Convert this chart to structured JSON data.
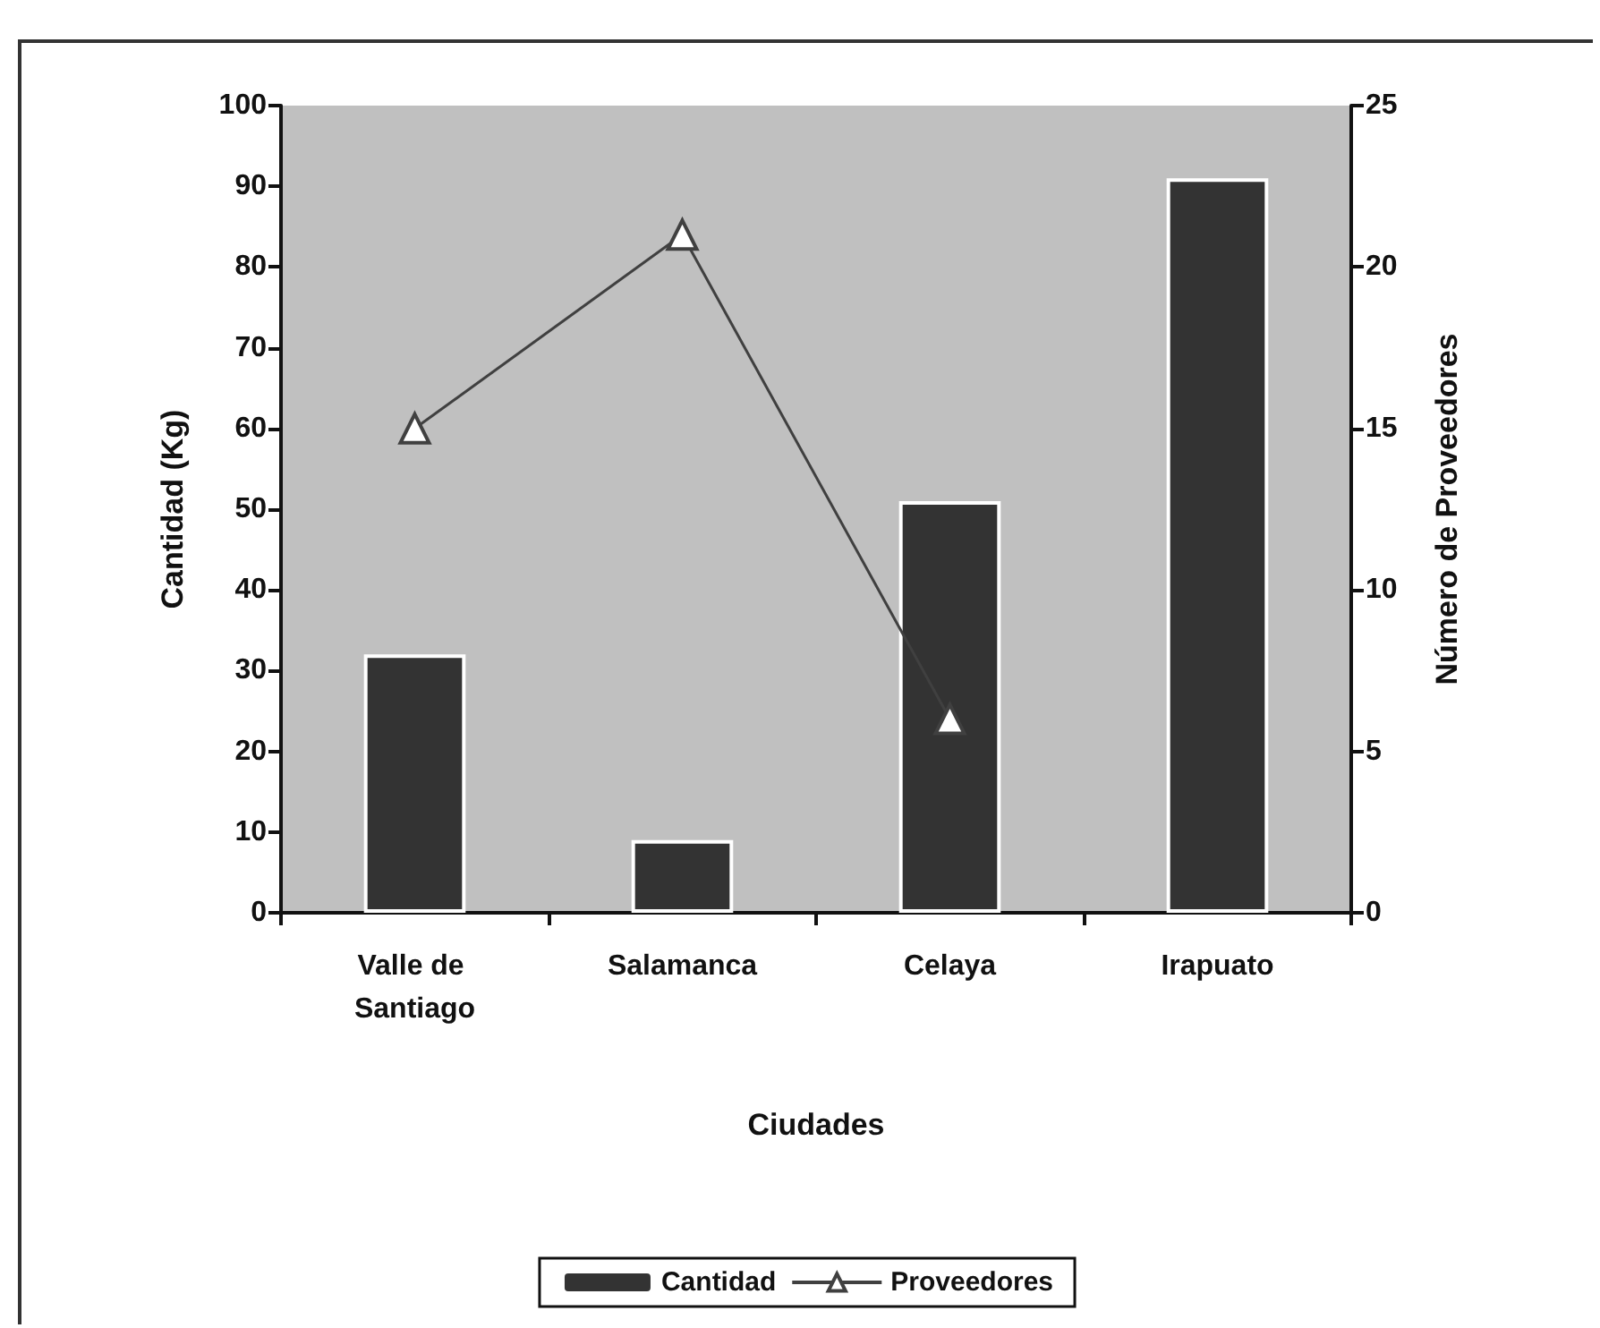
{
  "chart_data": {
    "type": "bar",
    "xlabel": "Ciudades",
    "ylabel": "Cantidad (Kg)",
    "y2label": "Número de Proveedores",
    "categories": [
      "Valle de Santiago",
      "Salamanca",
      "Celaya",
      "Irapuato"
    ],
    "series": [
      {
        "name": "Cantidad",
        "color": "#333333",
        "values": [
          32,
          9,
          51,
          91
        ]
      },
      {
        "name": "Proveedores",
        "type": "line",
        "axis": "y2",
        "color": "#404040",
        "marker": "triangle",
        "values": [
          15,
          21,
          6,
          null
        ]
      }
    ],
    "ylim": [
      0,
      100
    ],
    "yticks": [
      0,
      10,
      20,
      30,
      40,
      50,
      60,
      70,
      80,
      90,
      100
    ],
    "y2lim": [
      0,
      25
    ],
    "y2ticks": [
      0,
      5,
      10,
      15,
      20,
      25
    ],
    "grid": false,
    "legend": "bottom"
  }
}
